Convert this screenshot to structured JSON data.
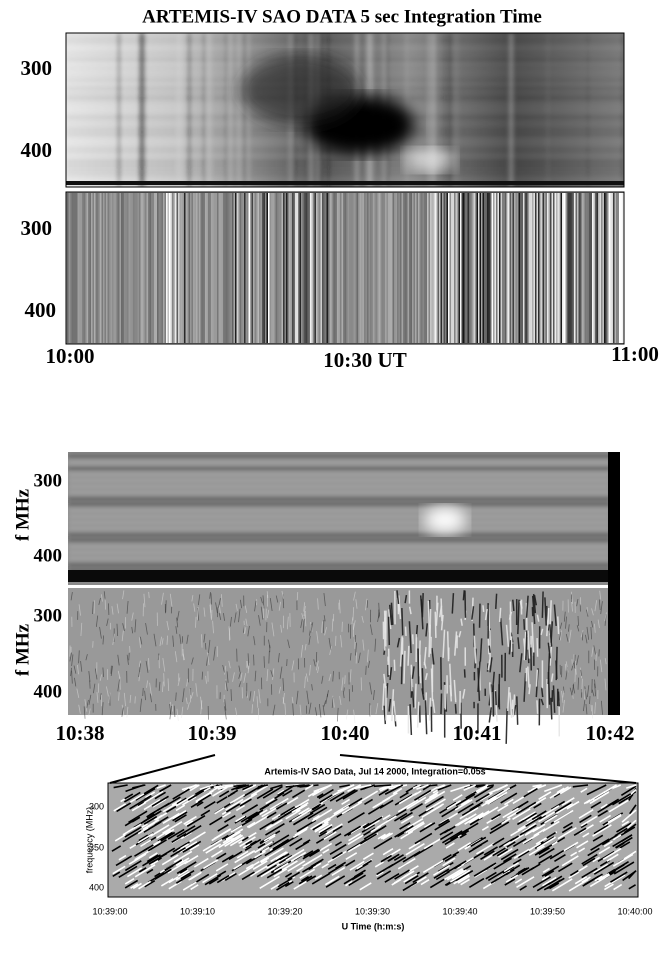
{
  "overview": {
    "title": "ARTEMIS-IV SAO DATA  5 sec Integration Time",
    "upper_y_ticks": [
      "300",
      "400"
    ],
    "lower_y_ticks": [
      "300",
      "400"
    ],
    "x_ticks": [
      "10:00",
      "10:30 UT",
      "11:00"
    ]
  },
  "zoom": {
    "upper_y_label": "f MHz",
    "lower_y_label": "f MHz",
    "upper_y_ticks": [
      "300",
      "400"
    ],
    "lower_y_ticks": [
      "300",
      "400"
    ],
    "x_ticks": [
      "10:38",
      "10:39",
      "10:40",
      "10:41",
      "10:42"
    ]
  },
  "detail": {
    "title": "Artemis-IV SAO Data,   Jul 14 2000,   Integration=0.05s",
    "y_label": "frequency (MHz)",
    "y_ticks": [
      "300",
      "350",
      "400"
    ],
    "x_label": "U Time (h:m:s)",
    "x_ticks": [
      "10:39:00",
      "10:39:10",
      "10:39:20",
      "10:39:30",
      "10:39:40",
      "10:39:50",
      "10:40:00"
    ]
  }
}
